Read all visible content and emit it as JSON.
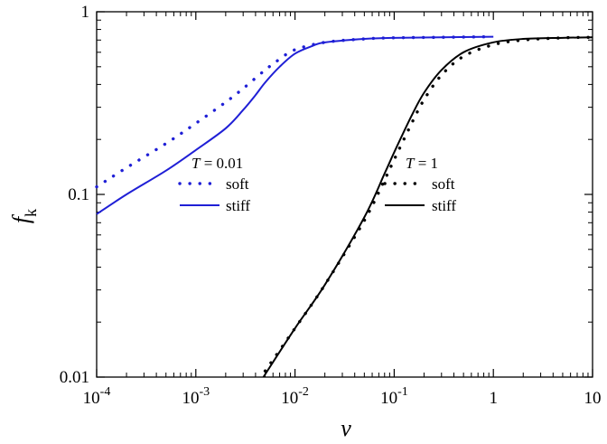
{
  "chart_data": {
    "type": "line",
    "xlabel": "v",
    "ylabel": "f",
    "ylabel_sub": "k",
    "x_scale": "log",
    "y_scale": "log",
    "xlim": [
      0.0001,
      10
    ],
    "ylim": [
      0.01,
      1
    ],
    "grid": false,
    "x_ticks": [
      {
        "value": 0.0001,
        "base": "10",
        "exp": "-4"
      },
      {
        "value": 0.001,
        "base": "10",
        "exp": "-3"
      },
      {
        "value": 0.01,
        "base": "10",
        "exp": "-2"
      },
      {
        "value": 0.1,
        "base": "10",
        "exp": "-1"
      },
      {
        "value": 1,
        "base": "1",
        "exp": ""
      },
      {
        "value": 10,
        "base": "10",
        "exp": ""
      }
    ],
    "y_ticks": [
      {
        "value": 0.01,
        "label": "0.01"
      },
      {
        "value": 0.1,
        "label": "0.1"
      },
      {
        "value": 1,
        "label": "1"
      }
    ],
    "legend_groups": [
      {
        "title_var": "T",
        "title_value": " = 0.01",
        "placement": "center-left",
        "entries": [
          {
            "label": "soft",
            "style": "dotted",
            "color": "#1f1fd6"
          },
          {
            "label": "stiff",
            "style": "solid",
            "color": "#1f1fd6"
          }
        ]
      },
      {
        "title_var": "T",
        "title_value": " = 1",
        "placement": "center-right",
        "entries": [
          {
            "label": "soft",
            "style": "dotted",
            "color": "#000000"
          },
          {
            "label": "stiff",
            "style": "solid",
            "color": "#000000"
          }
        ]
      }
    ],
    "series": [
      {
        "group": "T = 0.01",
        "label": "soft",
        "color": "#1f1fd6",
        "style": "dotted",
        "x": [
          0.0001,
          0.0002,
          0.0005,
          0.001,
          0.002,
          0.003,
          0.005,
          0.007,
          0.01,
          0.02,
          0.05,
          0.1,
          0.3,
          1
        ],
        "y": [
          0.11,
          0.14,
          0.19,
          0.245,
          0.32,
          0.38,
          0.48,
          0.55,
          0.62,
          0.68,
          0.71,
          0.72,
          0.725,
          0.73
        ]
      },
      {
        "group": "T = 0.01",
        "label": "stiff",
        "color": "#1f1fd6",
        "style": "solid",
        "x": [
          0.0001,
          0.0002,
          0.0005,
          0.001,
          0.002,
          0.003,
          0.004,
          0.005,
          0.007,
          0.01,
          0.015,
          0.02,
          0.05,
          0.1,
          0.3,
          1
        ],
        "y": [
          0.078,
          0.1,
          0.135,
          0.175,
          0.23,
          0.29,
          0.35,
          0.41,
          0.5,
          0.59,
          0.65,
          0.68,
          0.71,
          0.72,
          0.725,
          0.73
        ]
      },
      {
        "group": "T = 1",
        "label": "soft",
        "color": "#000000",
        "style": "dotted",
        "x": [
          0.005,
          0.01,
          0.02,
          0.05,
          0.08,
          0.1,
          0.15,
          0.2,
          0.3,
          0.5,
          1,
          2,
          5,
          10
        ],
        "y": [
          0.0108,
          0.0185,
          0.032,
          0.072,
          0.12,
          0.155,
          0.245,
          0.33,
          0.45,
          0.57,
          0.66,
          0.7,
          0.72,
          0.725
        ]
      },
      {
        "group": "T = 1",
        "label": "stiff",
        "color": "#000000",
        "style": "solid",
        "x": [
          0.0048,
          0.01,
          0.02,
          0.05,
          0.08,
          0.1,
          0.15,
          0.2,
          0.3,
          0.5,
          1,
          2,
          5,
          10
        ],
        "y": [
          0.01,
          0.0185,
          0.032,
          0.075,
          0.13,
          0.17,
          0.27,
          0.36,
          0.48,
          0.6,
          0.68,
          0.71,
          0.72,
          0.725
        ]
      }
    ]
  }
}
